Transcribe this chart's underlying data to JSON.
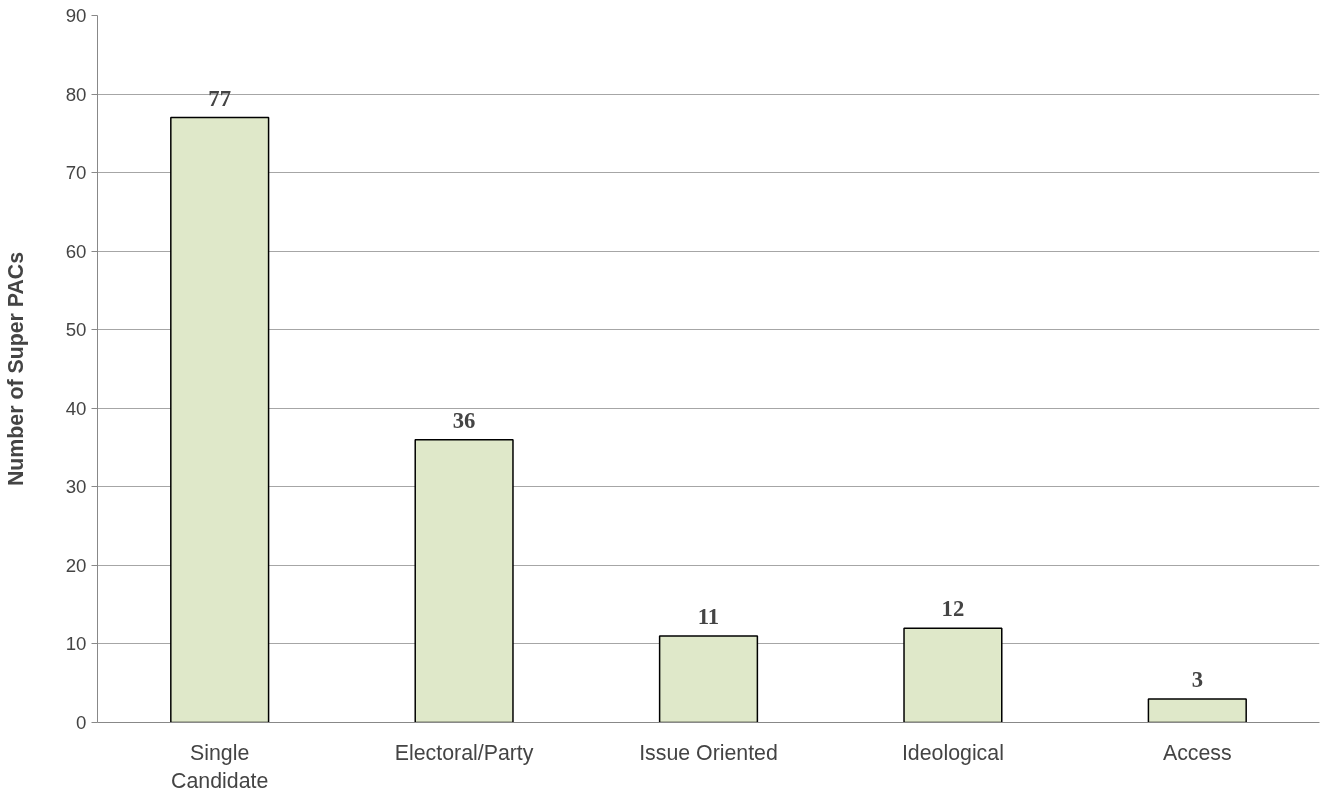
{
  "chart_data": {
    "type": "bar",
    "ylabel": "Number of Super PACs",
    "categories": [
      "Single Candidate",
      "Electoral/Party",
      "Issue Oriented",
      "Ideological",
      "Access"
    ],
    "values": [
      77,
      36,
      11,
      12,
      3
    ],
    "color": "#dfe8c9",
    "ylim": [
      0,
      90
    ],
    "yticks": [
      0,
      10,
      20,
      30,
      40,
      50,
      60,
      70,
      80,
      90
    ],
    "grid": "y",
    "data_labels": true
  }
}
